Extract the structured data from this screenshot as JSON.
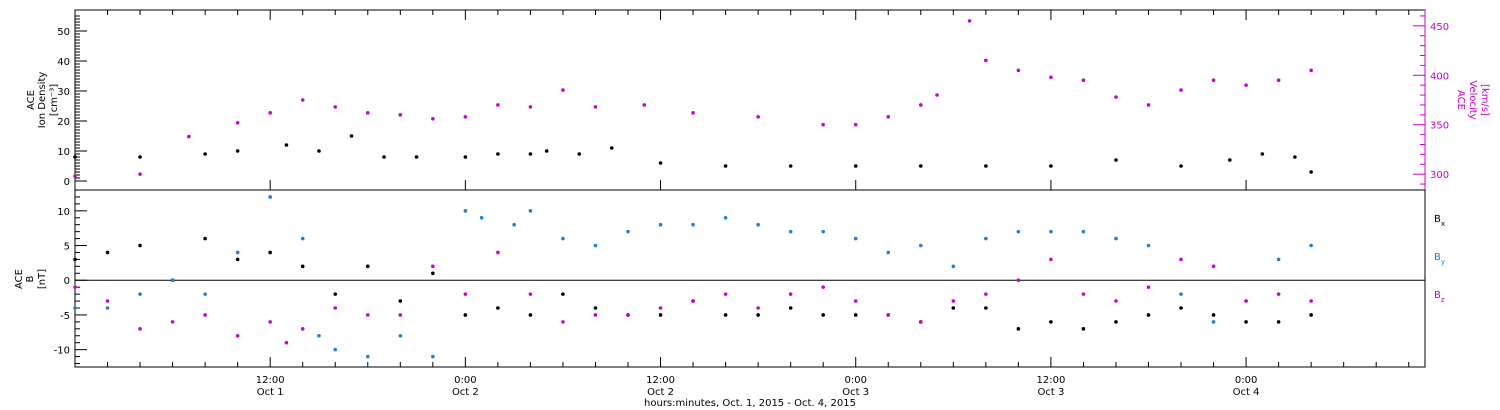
{
  "chart_data": [
    {
      "type": "scatter",
      "panel": "top",
      "ylabel": [
        "ACE",
        "Ion Density",
        "[cm⁻³]"
      ],
      "ylabel_right": [
        "ACE",
        "Velocity",
        "[km/s]"
      ],
      "ylim": [
        -3,
        57
      ],
      "yticks": [
        "0",
        "10",
        "20",
        "30",
        "40",
        "50"
      ],
      "y2lim": [
        284,
        466
      ],
      "y2ticks": [
        "300",
        "350",
        "400",
        "450"
      ],
      "grid": false,
      "series": [
        {
          "axis": "left",
          "color": "#000000",
          "x": [
            0,
            4,
            8,
            10,
            13,
            15,
            17,
            19,
            21,
            24,
            26,
            28,
            29,
            31,
            33,
            36,
            40,
            44,
            48,
            52,
            56,
            60,
            64,
            68,
            71,
            73,
            75,
            76
          ],
          "y": [
            8,
            8,
            9,
            10,
            12,
            10,
            15,
            8,
            8,
            8,
            9,
            9,
            10,
            9,
            11,
            6,
            5,
            5,
            5,
            5,
            5,
            5,
            7,
            5,
            7,
            9,
            8,
            3
          ]
        },
        {
          "axis": "right",
          "color": "#cc00cc",
          "x": [
            0,
            4,
            7,
            10,
            12,
            14,
            16,
            18,
            20,
            22,
            24,
            26,
            28,
            30,
            32,
            35,
            38,
            42,
            46,
            48,
            50,
            52,
            53,
            55,
            56,
            58,
            60,
            62,
            64,
            66,
            68,
            70,
            72,
            74,
            76
          ],
          "y": [
            298,
            300,
            338,
            352,
            362,
            375,
            368,
            362,
            360,
            356,
            358,
            370,
            368,
            385,
            368,
            370,
            362,
            358,
            350,
            350,
            358,
            370,
            380,
            455,
            415,
            405,
            398,
            395,
            378,
            370,
            385,
            395,
            390,
            395,
            405
          ]
        }
      ]
    },
    {
      "type": "scatter",
      "panel": "bottom",
      "ylabel": [
        "ACE",
        "B",
        "[nT]"
      ],
      "ylim": [
        -12.5,
        13
      ],
      "yticks": [
        "-10",
        "-5",
        "0",
        "5",
        "10"
      ],
      "grid": false,
      "legend": "right",
      "legend_labels": [
        {
          "base": "B",
          "sub": "x",
          "color": "#000000"
        },
        {
          "base": "B",
          "sub": "y",
          "color": "#1f7fd6"
        },
        {
          "base": "B",
          "sub": "z",
          "color": "#cc00cc"
        }
      ],
      "series": [
        {
          "color": "#000000",
          "x": [
            0,
            2,
            4,
            6,
            8,
            10,
            12,
            14,
            16,
            18,
            20,
            22,
            24,
            26,
            28,
            30,
            32,
            34,
            36,
            38,
            40,
            42,
            44,
            46,
            48,
            50,
            52,
            54,
            56,
            58,
            60,
            62,
            64,
            66,
            68,
            70,
            72,
            74,
            76
          ],
          "y": [
            3,
            4,
            5,
            0,
            6,
            3,
            4,
            2,
            -2,
            2,
            -3,
            1,
            -5,
            -4,
            -5,
            -2,
            -4,
            -5,
            -5,
            -3,
            -5,
            -5,
            -4,
            -5,
            -5,
            -5,
            -6,
            -4,
            -4,
            -7,
            -6,
            -7,
            -6,
            -5,
            -4,
            -5,
            -6,
            -6,
            -5
          ]
        },
        {
          "color": "#1f7fd6",
          "x": [
            0,
            2,
            4,
            6,
            8,
            10,
            12,
            14,
            15,
            16,
            18,
            20,
            22,
            24,
            25,
            27,
            28,
            30,
            32,
            34,
            36,
            38,
            40,
            42,
            44,
            46,
            48,
            50,
            52,
            54,
            56,
            58,
            60,
            62,
            64,
            66,
            68,
            70,
            72,
            74,
            76
          ],
          "y": [
            -4,
            -4,
            -2,
            0,
            -2,
            4,
            12,
            6,
            -8,
            -10,
            -11,
            -8,
            -11,
            10,
            9,
            8,
            10,
            6,
            5,
            7,
            8,
            8,
            9,
            8,
            7,
            7,
            6,
            4,
            5,
            2,
            6,
            7,
            7,
            7,
            6,
            5,
            -2,
            -6,
            -3,
            3,
            5
          ]
        },
        {
          "color": "#cc00cc",
          "x": [
            0,
            2,
            4,
            6,
            8,
            10,
            12,
            13,
            14,
            16,
            18,
            20,
            22,
            24,
            26,
            28,
            30,
            32,
            34,
            36,
            38,
            40,
            42,
            44,
            46,
            48,
            50,
            52,
            54,
            56,
            58,
            60,
            62,
            64,
            66,
            68,
            70,
            72,
            74,
            76
          ],
          "y": [
            -1,
            -3,
            -7,
            -6,
            -5,
            -8,
            -6,
            -9,
            -7,
            -4,
            -5,
            -5,
            2,
            -2,
            4,
            -2,
            -6,
            -5,
            -5,
            -4,
            -3,
            -2,
            -4,
            -2,
            -1,
            -3,
            -5,
            -6,
            -3,
            -2,
            0,
            3,
            -2,
            -3,
            -1,
            3,
            2,
            -3,
            -2,
            -3
          ]
        }
      ]
    }
  ],
  "xaxis": {
    "range": [
      0,
      83
    ],
    "ticks": [
      {
        "t": "12:00",
        "d": "Oct 1",
        "h": 12
      },
      {
        "t": "0:00",
        "d": "Oct 2",
        "h": 24
      },
      {
        "t": "12:00",
        "d": "Oct 2",
        "h": 36
      },
      {
        "t": "0:00",
        "d": "Oct 3",
        "h": 48
      },
      {
        "t": "12:00",
        "d": "Oct 3",
        "h": 60
      },
      {
        "t": "0:00",
        "d": "Oct 4",
        "h": 72
      }
    ],
    "label": "hours:minutes, Oct.  1, 2015 - Oct.  4, 2015"
  }
}
